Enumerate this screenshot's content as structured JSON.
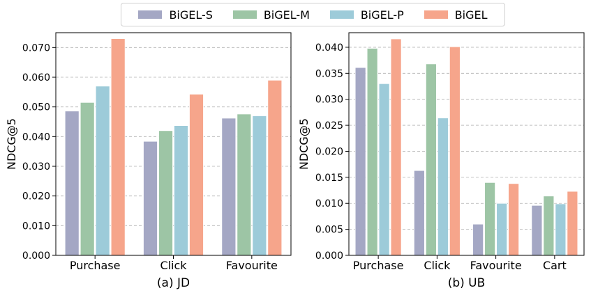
{
  "legend": [
    {
      "label": "BiGEL-S",
      "color": "#a4a7c4"
    },
    {
      "label": "BiGEL-M",
      "color": "#9dc5a5"
    },
    {
      "label": "BiGEL-P",
      "color": "#9dcbd9"
    },
    {
      "label": "BiGEL",
      "color": "#f6a58b"
    }
  ],
  "chart_data": [
    {
      "type": "bar",
      "title": "(a) JD",
      "ylabel": "NDCG@5",
      "ylim": [
        0,
        0.075
      ],
      "yticks": [
        "0.000",
        "0.010",
        "0.020",
        "0.030",
        "0.040",
        "0.050",
        "0.060",
        "0.070"
      ],
      "categories": [
        "Purchase",
        "Click",
        "Favourite"
      ],
      "series": [
        {
          "name": "BiGEL-S",
          "values": [
            0.0486,
            0.0384,
            0.0462
          ]
        },
        {
          "name": "BiGEL-M",
          "values": [
            0.0515,
            0.042,
            0.0476
          ]
        },
        {
          "name": "BiGEL-P",
          "values": [
            0.057,
            0.0437,
            0.047
          ]
        },
        {
          "name": "BiGEL",
          "values": [
            0.073,
            0.0543,
            0.059
          ]
        }
      ]
    },
    {
      "type": "bar",
      "title": "(b) UB",
      "ylabel": "NDCG@5",
      "ylim": [
        0,
        0.0428
      ],
      "yticks": [
        "0.000",
        "0.005",
        "0.010",
        "0.015",
        "0.020",
        "0.025",
        "0.030",
        "0.035",
        "0.040"
      ],
      "categories": [
        "Purchase",
        "Click",
        "Favourite",
        "Cart"
      ],
      "series": [
        {
          "name": "BiGEL-S",
          "values": [
            0.0361,
            0.0163,
            0.006,
            0.0096
          ]
        },
        {
          "name": "BiGEL-M",
          "values": [
            0.0398,
            0.0368,
            0.014,
            0.0114
          ]
        },
        {
          "name": "BiGEL-P",
          "values": [
            0.033,
            0.0264,
            0.01,
            0.0099
          ]
        },
        {
          "name": "BiGEL",
          "values": [
            0.0416,
            0.0401,
            0.0138,
            0.0123
          ]
        }
      ]
    }
  ]
}
